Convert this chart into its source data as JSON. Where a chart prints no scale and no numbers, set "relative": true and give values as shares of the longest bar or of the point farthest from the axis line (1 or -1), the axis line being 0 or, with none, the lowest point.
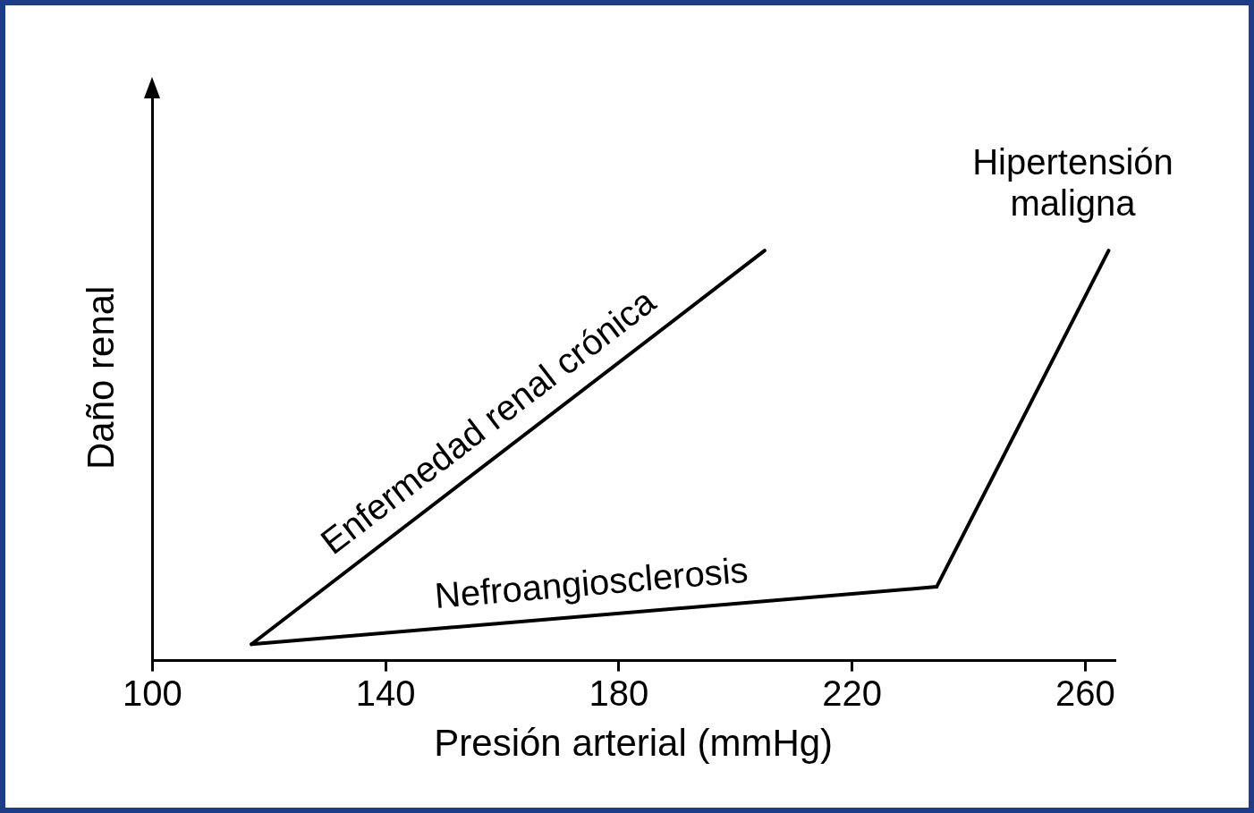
{
  "chart_data": {
    "type": "line",
    "xlabel": "Presión arterial (mmHg)",
    "ylabel": "Daño renal",
    "relative": true,
    "xlim": [
      100,
      265
    ],
    "xticks": [
      100,
      140,
      180,
      220,
      260
    ],
    "tick_labels": "x",
    "legend": false,
    "marker": "none",
    "line_style": "solid",
    "series": [
      {
        "name": "Enfermedad renal crónica",
        "color": "#000000",
        "x": [
          117,
          205
        ],
        "values": [
          0.04,
          1
        ]
      },
      {
        "name": "Nefroangiosclerosis",
        "color": "#000000",
        "x": [
          117,
          234.5
        ],
        "values": [
          0.04,
          0.18
        ]
      },
      {
        "name": "Hipertensión\nmaligna",
        "color": "#000000",
        "x": [
          234.5,
          264
        ],
        "values": [
          0.18,
          1
        ]
      }
    ]
  }
}
